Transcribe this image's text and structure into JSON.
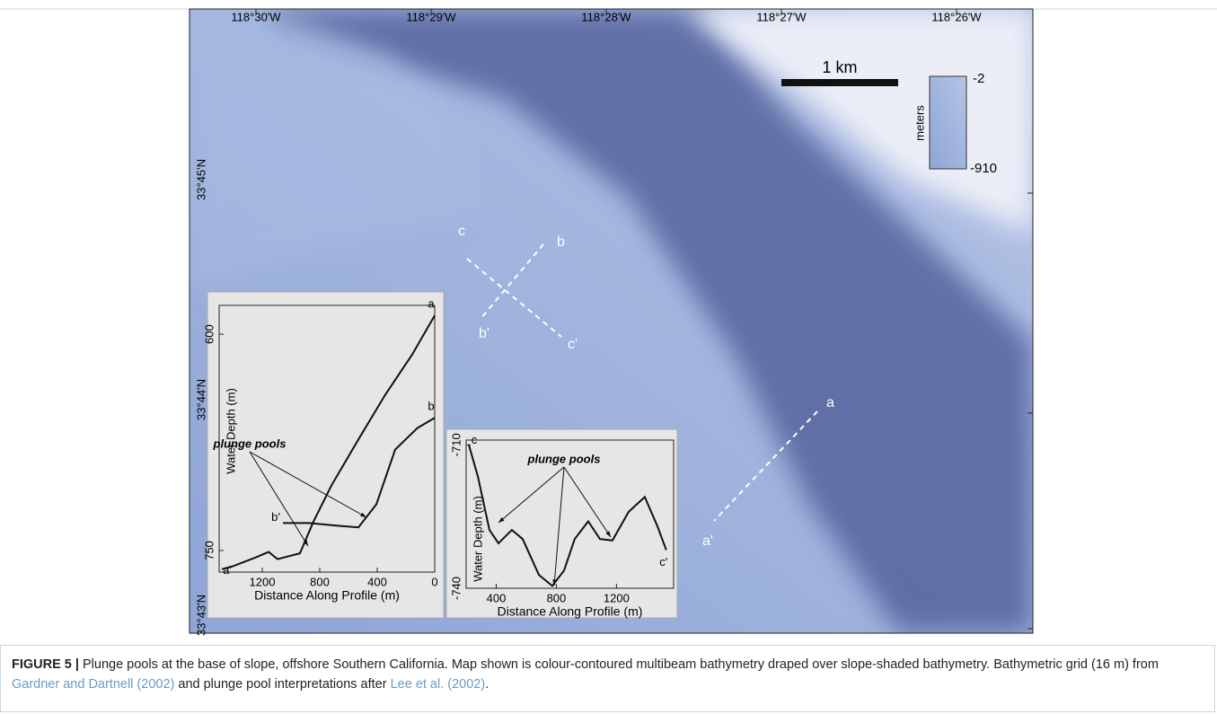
{
  "map": {
    "lon_labels": [
      "118°30'W",
      "118°29'W",
      "118°28'W",
      "118°27'W",
      "118°26'W"
    ],
    "lat_labels": [
      "33°45'N",
      "33°44'N",
      "33°43'N"
    ],
    "scale_label": "1 km",
    "colorbar": {
      "title": "meters",
      "max": -2,
      "min": -910
    },
    "profile_labels": [
      "c",
      "b",
      "b'",
      "c'",
      "a",
      "a'"
    ]
  },
  "inset_ab": {
    "xlabel": "Distance Along Profile (m)",
    "ylabel": "Water Depth (m)",
    "xlim": [
      1500,
      0
    ],
    "ylim": [
      580,
      765
    ],
    "inverted": true,
    "xticks": [
      1200,
      800,
      400,
      0
    ],
    "yticks": [
      600,
      750
    ],
    "annotation": "plunge pools",
    "series": [
      {
        "labels": [
          "a",
          "a'"
        ],
        "x": [
          0,
          156,
          344,
          531,
          719,
          844,
          938,
          1094,
          1156,
          1250,
          1406,
          1481
        ],
        "values": [
          587,
          614,
          642,
          673,
          705,
          730,
          752,
          756,
          751,
          755,
          761,
          763
        ]
      },
      {
        "labels": [
          "b",
          "b'"
        ],
        "x": [
          0,
          119,
          275,
          406,
          531,
          656,
          875,
          1056
        ],
        "values": [
          658,
          665,
          680,
          718,
          734,
          733,
          731,
          731
        ]
      }
    ]
  },
  "inset_c": {
    "xlabel": "Distance Along Profile (m)",
    "ylabel": "Water Depth (m)",
    "xlim": [
      200,
      1580
    ],
    "ylim": [
      -740,
      -709
    ],
    "inverted": false,
    "xticks": [
      400,
      800,
      1200
    ],
    "yticks": [
      -710,
      -740
    ],
    "annotation": "plunge pools",
    "series": [
      {
        "labels": [
          "c",
          "c'"
        ],
        "x": [
          218,
          278,
          355,
          415,
          504,
          576,
          684,
          773,
          851,
          922,
          1012,
          1090,
          1173,
          1281,
          1388,
          1472,
          1531
        ],
        "values": [
          -710,
          -716.6,
          -727.8,
          -730.6,
          -727.8,
          -729.7,
          -737.2,
          -739.5,
          -736.3,
          -729.7,
          -726,
          -729.7,
          -730,
          -724,
          -720.9,
          -727,
          -732
        ]
      }
    ]
  },
  "caption": {
    "label": "FIGURE 5 |",
    "text": " Plunge pools at the base of slope, offshore Southern California. Map shown is colour-contoured multibeam bathymetry draped over slope-shaded bathymetry. Bathymetric grid (16 m) from ",
    "ref1": "Gardner and Dartnell (2002)",
    "mid": " and plunge pool interpretations after ",
    "ref2": "Lee et al. (2002)",
    "end": "."
  }
}
